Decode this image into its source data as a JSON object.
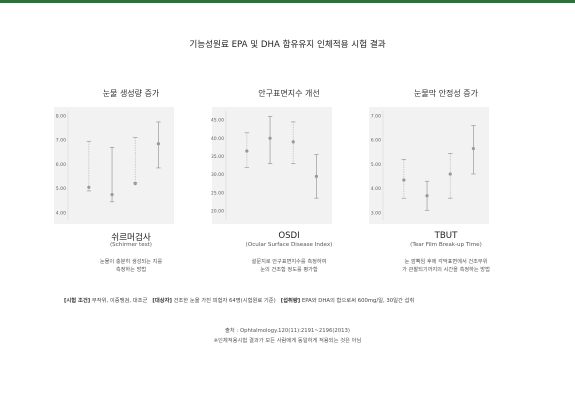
{
  "title": "기능성원료 EPA 및 DHA 함유유지 인체적용 시험 결과",
  "chart_data": [
    {
      "type": "scatter",
      "title": "눈물 생성량 증가",
      "caption": "쉬르머검사",
      "caption_sub": "(Schirmer test)",
      "description": [
        "눈물이 충분히 생성되는 지를",
        "측정하는 방법"
      ],
      "ylim": [
        3.7,
        8.2
      ],
      "yticks": [
        "8.00",
        "7.00",
        "6.00",
        "5.00",
        "4.00"
      ],
      "points": [
        {
          "mean": 5.05,
          "low": 4.9,
          "high": 6.95
        },
        {
          "mean": 4.75,
          "low": 4.45,
          "high": 6.7
        },
        {
          "mean": 5.2,
          "low": 5.25,
          "high": 7.1
        },
        {
          "mean": 6.85,
          "low": 5.85,
          "high": 7.75
        }
      ],
      "grid": false
    },
    {
      "type": "scatter",
      "title": "안구표면지수 개선",
      "caption": "OSDI",
      "caption_sub": "(Ocular Surface Disease Index)",
      "description": [
        "설문지로 안구표면지수를 측정하여",
        "눈의 건조함 정도를 평가함"
      ],
      "ylim": [
        17.5,
        47.5
      ],
      "yticks": [
        "45.00",
        "40.00",
        "35.00",
        "30.00",
        "25.00",
        "20.00"
      ],
      "points": [
        {
          "mean": 36.5,
          "low": 32.0,
          "high": 41.5
        },
        {
          "mean": 40.0,
          "low": 33.0,
          "high": 46.0
        },
        {
          "mean": 39.0,
          "low": 33.0,
          "high": 44.5
        },
        {
          "mean": 29.5,
          "low": 23.5,
          "high": 35.5
        }
      ],
      "grid": false
    },
    {
      "type": "scatter",
      "title": "눈물막 안정성 증가",
      "caption": "TBUT",
      "caption_sub": "(Tear Film Break-up Time)",
      "description": [
        "눈 깜빡임 후에 각막표면에서 건조부위",
        "가 관찰되기까지의 시간을 측정하는 방법"
      ],
      "ylim": [
        2.7,
        7.2
      ],
      "yticks": [
        "7.00",
        "6.00",
        "5.00",
        "4.00",
        "3.00"
      ],
      "points": [
        {
          "mean": 4.35,
          "low": 3.6,
          "high": 5.2
        },
        {
          "mean": 3.7,
          "low": 3.1,
          "high": 4.3
        },
        {
          "mean": 4.6,
          "low": 3.6,
          "high": 5.45
        },
        {
          "mean": 5.65,
          "low": 4.6,
          "high": 6.6
        }
      ],
      "grid": false
    }
  ],
  "conditions": {
    "c1_label": "[시험 조건]",
    "c1_text": "무작위, 이중맹검, 대조군",
    "c2_label": "[대상자]",
    "c2_text": "건조한 눈을 가진 피험자 64명(시험원료 기준)",
    "c3_label": "[섭취량]",
    "c3_text": "EPA와 DHA의 합으로써 600mg/일, 30일간 섭취"
  },
  "source": "출처 : Ophtalmology.120(11):2191~2196(2013)",
  "disclaimer": "※인체적용시험 결과가 모든 사람에게 동일하게 적용되는 것은 아님",
  "colors": {
    "marker": "#999999",
    "whisker": "#9a9a9a",
    "whisker_dashed": "#bbbbbb",
    "panel": "#f2f2f2",
    "accent": "#2f6e3d"
  }
}
